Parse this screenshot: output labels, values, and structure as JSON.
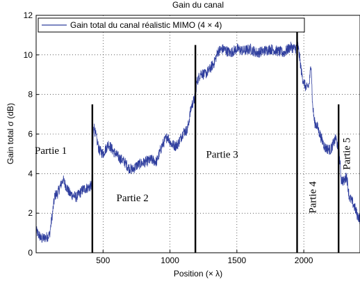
{
  "chart_data": {
    "type": "line",
    "title": "Gain du canal",
    "xlabel": "Position (× λ)",
    "ylabel": "Gain total σ (dB)",
    "xlim": [
      0,
      2420
    ],
    "ylim": [
      0,
      12
    ],
    "x_ticks": [
      500,
      1000,
      1500,
      2000
    ],
    "x_tick_labels": [
      "500",
      "1000",
      "1500",
      "2000"
    ],
    "y_ticks": [
      0,
      2,
      4,
      6,
      8,
      10,
      12
    ],
    "y_tick_labels": [
      "0",
      "2",
      "4",
      "6",
      "8",
      "10",
      "12"
    ],
    "grid": true,
    "legend_position": "top-left",
    "series": [
      {
        "name": "Gain total du canal réalistic MIMO (4 × 4)",
        "color": "#2f3e9e",
        "x": [
          0,
          40,
          80,
          100,
          120,
          140,
          160,
          200,
          250,
          300,
          350,
          390,
          415,
          430,
          440,
          470,
          500,
          540,
          580,
          620,
          660,
          690,
          720,
          750,
          780,
          820,
          860,
          900,
          940,
          980,
          1010,
          1040,
          1060,
          1080,
          1100,
          1130,
          1160,
          1185,
          1200,
          1230,
          1260,
          1290,
          1330,
          1360,
          1400,
          1450,
          1500,
          1550,
          1600,
          1650,
          1700,
          1750,
          1800,
          1850,
          1900,
          1935,
          1955,
          1970,
          1985,
          2000,
          2020,
          2040,
          2055,
          2065,
          2080,
          2100,
          2130,
          2160,
          2200,
          2240,
          2265,
          2280,
          2300,
          2320,
          2340,
          2360,
          2380,
          2400,
          2420
        ],
        "y": [
          1.1,
          0.7,
          0.8,
          0.9,
          1.9,
          2.9,
          3.0,
          3.7,
          3.0,
          2.8,
          3.2,
          3.3,
          3.4,
          6.5,
          6.1,
          5.2,
          5.0,
          5.5,
          5.1,
          4.8,
          4.6,
          4.3,
          4.2,
          4.4,
          4.5,
          4.6,
          4.7,
          4.6,
          5.4,
          5.9,
          5.5,
          5.4,
          5.5,
          5.8,
          6.1,
          6.2,
          7.4,
          7.8,
          8.6,
          9.1,
          9.0,
          9.2,
          9.6,
          10.2,
          10.3,
          10.1,
          10.3,
          10.2,
          10.3,
          10.1,
          10.2,
          10.3,
          10.2,
          10.1,
          10.4,
          10.3,
          10.5,
          9.8,
          9.0,
          8.6,
          8.3,
          8.5,
          9.6,
          7.5,
          6.6,
          6.4,
          5.8,
          5.3,
          5.2,
          5.8,
          5.0,
          3.7,
          3.6,
          3.9,
          2.8,
          2.6,
          2.3,
          1.9,
          1.7
        ]
      }
    ],
    "vertical_markers": [
      {
        "x": 420,
        "ytop": 7.5
      },
      {
        "x": 1190,
        "ytop": 10.5
      },
      {
        "x": 1950,
        "ytop": 11.4
      },
      {
        "x": 2260,
        "ytop": 7.5
      }
    ],
    "annotations": [
      {
        "text": "Partie 1",
        "x": 110,
        "y": 5.0,
        "rotate": false
      },
      {
        "text": "Partie 2",
        "x": 720,
        "y": 2.6,
        "rotate": false
      },
      {
        "text": "Partie 3",
        "x": 1390,
        "y": 4.8,
        "rotate": false
      },
      {
        "text": "Partie 4",
        "x": 2090,
        "y": 2.8,
        "rotate": true
      },
      {
        "text": "Partie 5",
        "x": 2345,
        "y": 5.0,
        "rotate": true
      }
    ]
  }
}
